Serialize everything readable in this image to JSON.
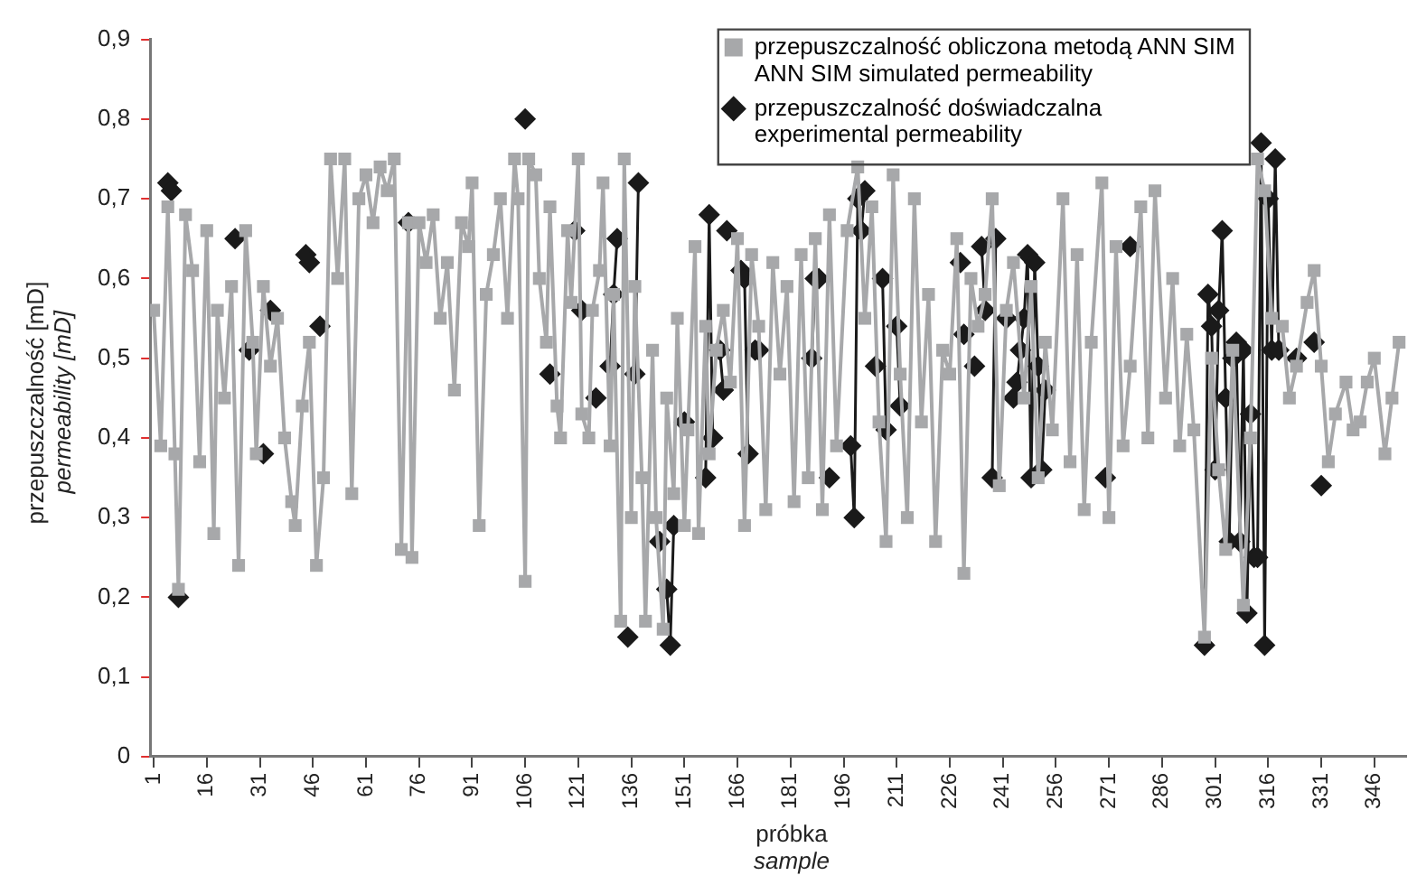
{
  "chart_data": {
    "type": "line",
    "xlabel": "próbka\nsample",
    "ylabel": "przepuszczalność [mD]\npermeability [mD]",
    "xlim": [
      0,
      355
    ],
    "xticks": [
      1,
      16,
      31,
      46,
      61,
      76,
      91,
      106,
      121,
      136,
      151,
      166,
      181,
      196,
      211,
      226,
      241,
      256,
      271,
      286,
      301,
      316,
      331,
      346
    ],
    "ylim": [
      0,
      0.9
    ],
    "yticks": [
      0,
      {
        "value": 0.1,
        "label": "0,1"
      },
      {
        "value": 0.2,
        "label": "0,2"
      },
      {
        "value": 0.3,
        "label": "0,3"
      },
      {
        "value": 0.4,
        "label": "0,4"
      },
      {
        "value": 0.5,
        "label": "0,5"
      },
      {
        "value": 0.6,
        "label": "0,6"
      },
      {
        "value": 0.7,
        "label": "0,7"
      },
      {
        "value": 0.8,
        "label": "0,8"
      },
      {
        "value": 0.9,
        "label": "0,9"
      }
    ],
    "grid": false,
    "legend": "top right",
    "series": [
      {
        "name": "przepuszczalność obliczona metodą ANN SIM\nANN SIM simulated permeability",
        "color": "#a7a8aa",
        "marker": "square",
        "x": [
          1,
          3,
          5,
          7,
          8,
          10,
          12,
          14,
          16,
          18,
          19,
          21,
          23,
          25,
          27,
          29,
          30,
          32,
          34,
          36,
          38,
          40,
          41,
          43,
          45,
          47,
          49,
          51,
          53,
          55,
          57,
          59,
          61,
          63,
          65,
          67,
          69,
          71,
          73,
          74,
          76,
          78,
          80,
          82,
          84,
          86,
          88,
          90,
          91,
          93,
          95,
          97,
          99,
          101,
          103,
          104,
          106,
          107,
          109,
          110,
          112,
          113,
          115,
          116,
          118,
          119,
          121,
          122,
          124,
          125,
          127,
          128,
          130,
          131,
          133,
          134,
          136,
          137,
          139,
          140,
          142,
          143,
          145,
          146,
          148,
          149,
          151,
          152,
          154,
          155,
          157,
          158,
          160,
          162,
          164,
          166,
          168,
          170,
          172,
          174,
          176,
          178,
          180,
          182,
          184,
          186,
          188,
          190,
          192,
          194,
          197,
          200,
          202,
          204,
          206,
          208,
          210,
          212,
          214,
          216,
          218,
          220,
          222,
          224,
          226,
          228,
          230,
          232,
          234,
          236,
          238,
          240,
          242,
          244,
          247,
          249,
          251,
          253,
          255,
          258,
          260,
          262,
          264,
          266,
          269,
          271,
          273,
          275,
          277,
          280,
          282,
          284,
          287,
          289,
          291,
          293,
          295,
          298,
          300,
          302,
          304,
          306,
          309,
          311,
          313,
          315,
          317,
          320,
          322,
          324,
          327,
          329,
          331,
          333,
          335,
          338,
          340,
          342,
          344,
          346,
          349,
          351,
          353
        ],
        "values": [
          0.56,
          0.39,
          0.69,
          0.38,
          0.21,
          0.68,
          0.61,
          0.37,
          0.66,
          0.28,
          0.56,
          0.45,
          0.59,
          0.24,
          0.66,
          0.52,
          0.38,
          0.59,
          0.49,
          0.55,
          0.4,
          0.32,
          0.29,
          0.44,
          0.52,
          0.24,
          0.35,
          0.75,
          0.6,
          0.75,
          0.33,
          0.7,
          0.73,
          0.67,
          0.74,
          0.71,
          0.75,
          0.26,
          0.67,
          0.25,
          0.67,
          0.62,
          0.68,
          0.55,
          0.62,
          0.46,
          0.67,
          0.64,
          0.72,
          0.29,
          0.58,
          0.63,
          0.7,
          0.55,
          0.75,
          0.7,
          0.22,
          0.75,
          0.73,
          0.6,
          0.52,
          0.69,
          0.44,
          0.4,
          0.66,
          0.57,
          0.75,
          0.43,
          0.4,
          0.56,
          0.61,
          0.72,
          0.39,
          0.58,
          0.17,
          0.75,
          0.3,
          0.59,
          0.35,
          0.17,
          0.51,
          0.3,
          0.16,
          0.45,
          0.33,
          0.55,
          0.29,
          0.41,
          0.64,
          0.28,
          0.54,
          0.38,
          0.51,
          0.56,
          0.47,
          0.65,
          0.29,
          0.63,
          0.54,
          0.31,
          0.62,
          0.48,
          0.59,
          0.32,
          0.63,
          0.35,
          0.65,
          0.31,
          0.68,
          0.39,
          0.66,
          0.74,
          0.55,
          0.69,
          0.42,
          0.27,
          0.73,
          0.48,
          0.3,
          0.7,
          0.42,
          0.58,
          0.27,
          0.51,
          0.48,
          0.65,
          0.23,
          0.6,
          0.54,
          0.58,
          0.7,
          0.34,
          0.56,
          0.62,
          0.45,
          0.59,
          0.35,
          0.52,
          0.41,
          0.7,
          0.37,
          0.63,
          0.31,
          0.52,
          0.72,
          0.3,
          0.64,
          0.39,
          0.49,
          0.69,
          0.4,
          0.71,
          0.45,
          0.6,
          0.39,
          0.53,
          0.41,
          0.15,
          0.5,
          0.36,
          0.26,
          0.51,
          0.19,
          0.4,
          0.75,
          0.71,
          0.55,
          0.54,
          0.45,
          0.49,
          0.57,
          0.61,
          0.49,
          0.37,
          0.43,
          0.47,
          0.41,
          0.42,
          0.47,
          0.5,
          0.38,
          0.45,
          0.52
        ]
      },
      {
        "name": "przepuszczalność doświadczalna\nexperimental permeability",
        "color": "#1a1a1a",
        "marker": "diamond",
        "x": [
          5,
          6,
          6.5,
          8,
          8.5,
          24,
          24.5,
          28,
          28.5,
          32,
          32.5,
          34,
          34.5,
          44,
          45,
          45.5,
          48,
          48.5,
          73,
          73.5,
          106,
          106.5,
          113,
          113.5,
          120,
          120.5,
          122,
          122.5,
          126,
          126.5,
          130,
          131,
          132,
          132.5,
          135,
          135.5,
          137,
          138,
          138.5,
          144,
          144.5,
          146,
          147,
          148,
          148.5,
          151,
          151.5,
          157,
          158,
          159,
          159.5,
          161,
          162,
          162.5,
          163,
          163.5,
          167,
          168,
          169,
          169.5,
          171,
          171.5,
          172,
          172.5,
          187,
          188,
          189,
          189.5,
          192,
          192.5,
          198,
          199,
          200,
          201,
          202,
          202.5,
          205,
          205.5,
          207,
          208,
          208.5,
          211,
          212,
          212.5,
          229,
          229.5,
          230,
          230.5,
          233,
          233.5,
          235,
          236,
          236.5,
          238,
          239,
          239.5,
          242,
          242.5,
          244,
          245,
          246,
          247,
          248,
          249,
          250,
          251,
          252,
          253,
          253.5,
          270,
          270.5,
          277,
          277.5,
          298,
          299,
          300,
          301,
          302,
          303,
          304,
          305,
          306,
          307,
          308,
          309,
          310,
          311,
          312,
          313,
          314,
          315,
          316,
          317,
          318,
          319,
          319.5,
          324,
          324.5,
          329,
          329.5,
          331
        ],
        "values": [
          0.72,
          0.71,
          null,
          0.2,
          null,
          0.65,
          null,
          0.51,
          null,
          0.38,
          null,
          0.56,
          null,
          0.63,
          0.62,
          null,
          0.54,
          null,
          0.67,
          null,
          0.8,
          null,
          0.48,
          null,
          0.66,
          null,
          0.56,
          null,
          0.45,
          null,
          0.49,
          0.58,
          0.65,
          null,
          0.15,
          null,
          0.48,
          0.72,
          null,
          0.27,
          null,
          0.21,
          0.14,
          0.29,
          null,
          0.42,
          null,
          0.35,
          0.68,
          0.4,
          null,
          0.51,
          0.46,
          null,
          0.66,
          null,
          0.61,
          0.6,
          0.38,
          null,
          0.51,
          null,
          0.51,
          null,
          0.5,
          0.6,
          0.6,
          null,
          0.35,
          null,
          0.39,
          0.3,
          0.7,
          0.66,
          0.71,
          null,
          0.49,
          null,
          0.6,
          0.41,
          null,
          0.54,
          0.44,
          null,
          0.62,
          null,
          0.53,
          null,
          0.49,
          null,
          0.64,
          0.56,
          null,
          0.35,
          0.65,
          null,
          0.55,
          null,
          0.45,
          0.47,
          0.51,
          0.55,
          0.63,
          0.35,
          0.62,
          0.49,
          0.36,
          0.46,
          null,
          0.35,
          null,
          0.64,
          null,
          0.14,
          0.58,
          0.54,
          0.36,
          0.56,
          0.66,
          0.45,
          0.27,
          0.5,
          0.52,
          0.27,
          0.51,
          0.18,
          0.43,
          0.25,
          0.25,
          0.77,
          0.14,
          0.7,
          0.51,
          0.75,
          0.51,
          null,
          0.5,
          null,
          0.52,
          null,
          0.34
        ]
      }
    ]
  }
}
